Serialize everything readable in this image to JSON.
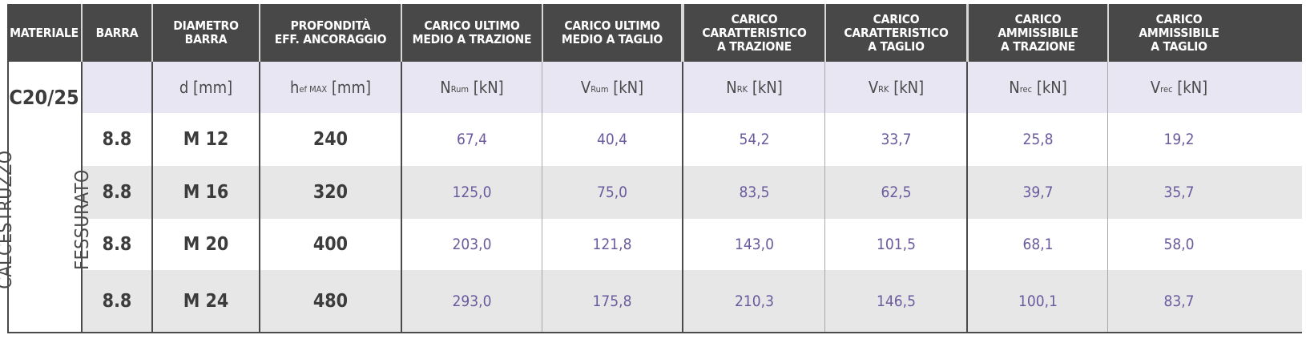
{
  "material": {
    "grade": "C20/25",
    "type_line1": "CALCESTRUZZO",
    "type_line2": "FESSURATO"
  },
  "headers": [
    "MATERIALE",
    "BARRA",
    "DIAMETRO\nBARRA",
    "PROFONDITÀ\nEFF. ANCORAGGIO",
    "CARICO ULTIMO\nMEDIO A TRAZIONE",
    "CARICO ULTIMO\nMEDIO A TAGLIO",
    "CARICO\nCARATTERISTICO\nA TRAZIONE",
    "CARICO\nCARATTERISTICO\nA TAGLIO",
    "CARICO\nAMMISSIBILE\nA TRAZIONE",
    "CARICO\nAMMISSIBILE\nA TAGLIO"
  ],
  "units": [
    {
      "main": "d",
      "sub": "",
      "unit": "[mm]"
    },
    {
      "main": "h",
      "sub": "ef MAX",
      "unit": "[mm]"
    },
    {
      "main": "N",
      "sub": "Rum",
      "unit": "[kN]"
    },
    {
      "main": "V",
      "sub": "Rum",
      "unit": "[kN]"
    },
    {
      "main": "N",
      "sub": "RK",
      "unit": "[kN]"
    },
    {
      "main": "V",
      "sub": "RK",
      "unit": "[kN]"
    },
    {
      "main": "N",
      "sub": "rec",
      "unit": "[kN]"
    },
    {
      "main": "V",
      "sub": "rec",
      "unit": "[kN]"
    }
  ],
  "rows": [
    [
      "8.8",
      "M 12",
      "240",
      "67,4",
      "40,4",
      "54,2",
      "33,7",
      "25,8",
      "19,2"
    ],
    [
      "8.8",
      "M 16",
      "320",
      "125,0",
      "75,0",
      "83,5",
      "62,5",
      "39,7",
      "35,7"
    ],
    [
      "8.8",
      "M 20",
      "400",
      "203,0",
      "121,8",
      "143,0",
      "101,5",
      "68,1",
      "58,0"
    ],
    [
      "8.8",
      "M 24",
      "480",
      "293,0",
      "175,8",
      "210,3",
      "146,5",
      "100,1",
      "83,7"
    ]
  ]
}
